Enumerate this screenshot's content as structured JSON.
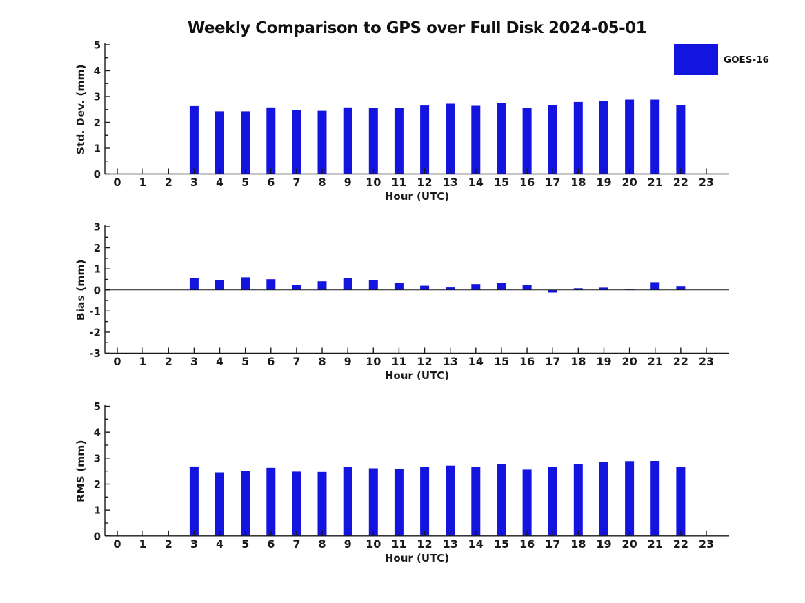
{
  "figure": {
    "title": "Weekly Comparison to GPS over Full Disk 2024-05-01",
    "legend": {
      "label": "GOES-16",
      "swatch_color": "#1414e0",
      "position": "top-right"
    },
    "background_color": "#ffffff",
    "text_color": "#1a1a1a"
  },
  "chart_data": [
    {
      "type": "bar",
      "name": "std-dev",
      "series_name": "GOES-16",
      "xlabel": "Hour (UTC)",
      "ylabel": "Std. Dev. (mm)",
      "x": [
        0,
        1,
        2,
        3,
        4,
        5,
        6,
        7,
        8,
        9,
        10,
        11,
        12,
        13,
        14,
        15,
        16,
        17,
        18,
        19,
        20,
        21,
        22,
        23
      ],
      "values": [
        null,
        null,
        null,
        2.63,
        2.43,
        2.43,
        2.58,
        2.48,
        2.45,
        2.58,
        2.56,
        2.55,
        2.65,
        2.72,
        2.64,
        2.75,
        2.57,
        2.66,
        2.79,
        2.84,
        2.88,
        2.88,
        2.66,
        null
      ],
      "ylim": [
        0,
        5
      ],
      "ytick_step": 1,
      "y_minor_step": 0.5,
      "bar_color": "#1414e0",
      "grid": false,
      "zero_line": false
    },
    {
      "type": "bar",
      "name": "bias",
      "series_name": "GOES-16",
      "xlabel": "Hour (UTC)",
      "ylabel": "Bias (mm)",
      "x": [
        0,
        1,
        2,
        3,
        4,
        5,
        6,
        7,
        8,
        9,
        10,
        11,
        12,
        13,
        14,
        15,
        16,
        17,
        18,
        19,
        20,
        21,
        22,
        23
      ],
      "values": [
        null,
        null,
        null,
        0.55,
        0.45,
        0.6,
        0.51,
        0.25,
        0.41,
        0.58,
        0.45,
        0.32,
        0.2,
        0.12,
        0.28,
        0.33,
        0.25,
        -0.12,
        0.08,
        0.11,
        0.02,
        0.37,
        0.18,
        null
      ],
      "ylim": [
        -3,
        3
      ],
      "ytick_step": 1,
      "y_minor_step": 0.5,
      "bar_color": "#1414e0",
      "grid": false,
      "zero_line": true
    },
    {
      "type": "bar",
      "name": "rms",
      "series_name": "GOES-16",
      "xlabel": "Hour (UTC)",
      "ylabel": "RMS (mm)",
      "x": [
        0,
        1,
        2,
        3,
        4,
        5,
        6,
        7,
        8,
        9,
        10,
        11,
        12,
        13,
        14,
        15,
        16,
        17,
        18,
        19,
        20,
        21,
        22,
        23
      ],
      "values": [
        null,
        null,
        null,
        2.68,
        2.45,
        2.5,
        2.63,
        2.48,
        2.47,
        2.65,
        2.61,
        2.57,
        2.65,
        2.71,
        2.66,
        2.76,
        2.56,
        2.65,
        2.78,
        2.84,
        2.88,
        2.89,
        2.65,
        null
      ],
      "ylim": [
        0,
        5
      ],
      "ytick_step": 1,
      "y_minor_step": 0.5,
      "bar_color": "#1414e0",
      "grid": false,
      "zero_line": false
    }
  ]
}
